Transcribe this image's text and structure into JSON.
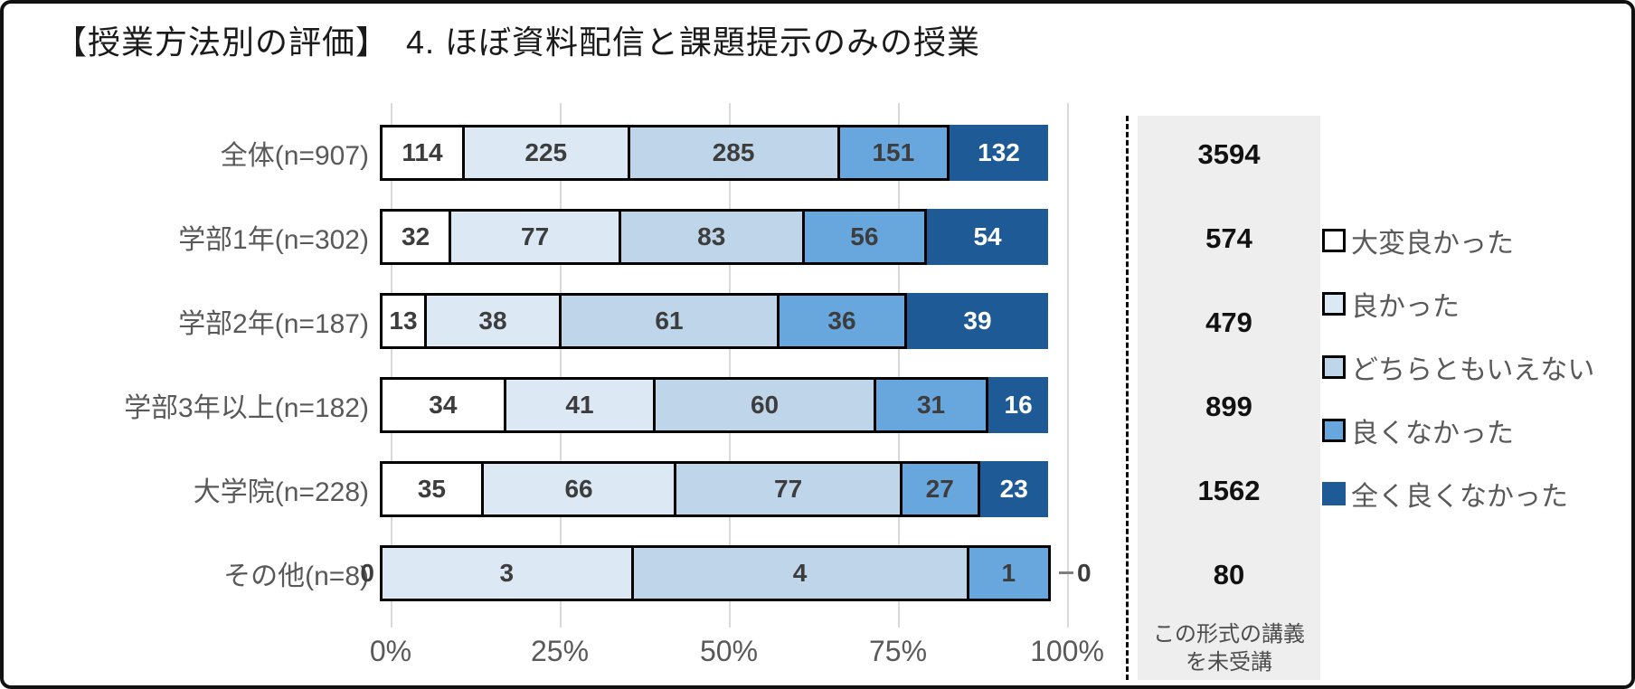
{
  "title": "【授業方法別の評価】　4. ほぼ資料配信と課題提示のみの授業",
  "chart_data": {
    "type": "bar",
    "variant": "horizontal-stacked",
    "xlabel": "",
    "ylabel": "",
    "xlim": [
      0,
      100
    ],
    "grid": true,
    "legend_position": "right",
    "series": [
      "大変良かった",
      "良かった",
      "どちらともいえない",
      "良くなかった",
      "全く良くなかった"
    ],
    "colors": [
      "#ffffff",
      "#dce8f4",
      "#bed5ea",
      "#68a7de",
      "#1d5a96"
    ],
    "rows": [
      {
        "label": "全体(n=907)",
        "values": [
          114,
          225,
          285,
          151,
          132
        ],
        "not_attended": 3594
      },
      {
        "label": "学部1年(n=302)",
        "values": [
          32,
          77,
          83,
          56,
          54
        ],
        "not_attended": 574
      },
      {
        "label": "学部2年(n=187)",
        "values": [
          13,
          38,
          61,
          36,
          39
        ],
        "not_attended": 479
      },
      {
        "label": "学部3年以上(n=182)",
        "values": [
          34,
          41,
          60,
          31,
          16
        ],
        "not_attended": 899
      },
      {
        "label": "大学院(n=228)",
        "values": [
          35,
          66,
          77,
          27,
          23
        ],
        "not_attended": 1562
      },
      {
        "label": "その他(n=8)",
        "values": [
          0,
          3,
          4,
          1,
          0
        ],
        "not_attended": 80
      }
    ],
    "x_ticks": [
      "0%",
      "25%",
      "50%",
      "75%",
      "100%"
    ],
    "side_note_lines": [
      "この形式の講義",
      "を未受講"
    ]
  }
}
